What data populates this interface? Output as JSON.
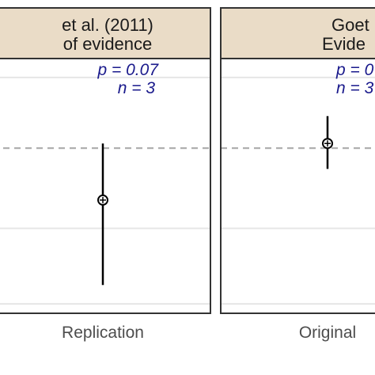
{
  "chart_data": [
    {
      "type": "scatter",
      "strip": [
        "et al. (2011)",
        "of evidence"
      ],
      "annotation": {
        "p": "p = 0.07",
        "n": "n = 3"
      },
      "categories": [
        "Replication"
      ],
      "points": [
        {
          "category": "Replication",
          "estimate": -0.55,
          "lower": -1.45,
          "upper": 0.05
        }
      ],
      "reference_line": 0.0,
      "gridlines": [
        0.75,
        -0.85,
        -1.65
      ],
      "ylim": [
        -1.75,
        0.95
      ],
      "grid": true
    },
    {
      "type": "scatter",
      "strip": [
        "Goet",
        "Evide"
      ],
      "annotation": {
        "p": "p = 0",
        "n": "n = 3"
      },
      "categories": [
        "Original"
      ],
      "points": [
        {
          "category": "Original",
          "estimate": 0.05,
          "lower": -0.22,
          "upper": 0.34
        }
      ],
      "reference_line": 0.0,
      "gridlines": [
        0.75,
        -0.85,
        -1.65
      ],
      "ylim": [
        -1.75,
        0.95
      ],
      "grid": true
    }
  ],
  "colors": {
    "strip_fill": "#eadcc7",
    "panel_border": "#333333",
    "grid": "#e6e6e6",
    "reference_line": "#a6a6a6",
    "annotation": "#1a1a8c",
    "point": "#000000"
  }
}
